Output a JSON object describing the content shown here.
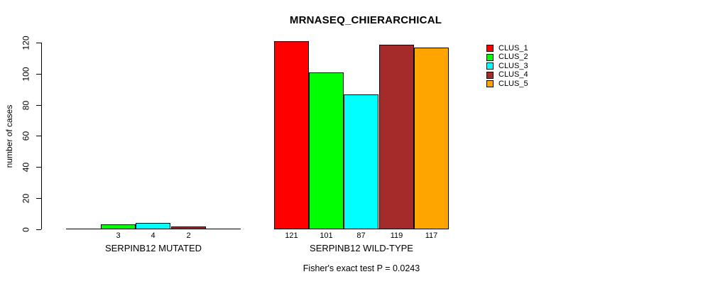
{
  "chart_data": {
    "type": "bar",
    "title": "MRNASEQ_CHIERARCHICAL",
    "ylabel": "number of cases",
    "xlabel": "",
    "ylim": [
      0,
      120
    ],
    "yticks": [
      0,
      20,
      40,
      60,
      80,
      100,
      120
    ],
    "grid": "off",
    "legend_position": "right",
    "legend": [
      {
        "name": "CLUS_1",
        "color": "#FF0000"
      },
      {
        "name": "CLUS_2",
        "color": "#00FF00"
      },
      {
        "name": "CLUS_3",
        "color": "#00FFFF"
      },
      {
        "name": "CLUS_4",
        "color": "#A52A2A"
      },
      {
        "name": "CLUS_5",
        "color": "#FFA500"
      }
    ],
    "categories": [
      "CLUS_1",
      "CLUS_2",
      "CLUS_3",
      "CLUS_4",
      "CLUS_5"
    ],
    "groups": [
      {
        "label": "SERPINB12 MUTATED",
        "values": [
          0,
          3,
          4,
          2,
          0
        ],
        "bar_labels": [
          "",
          "3",
          "4",
          "2",
          ""
        ]
      },
      {
        "label": "SERPINB12 WILD-TYPE",
        "values": [
          121,
          101,
          87,
          119,
          117
        ],
        "bar_labels": [
          "121",
          "101",
          "87",
          "119",
          "117"
        ]
      }
    ],
    "caption": "Fisher's exact test P = 0.0243",
    "axis_color": "#000000",
    "background_color": "#FFFFFF"
  }
}
